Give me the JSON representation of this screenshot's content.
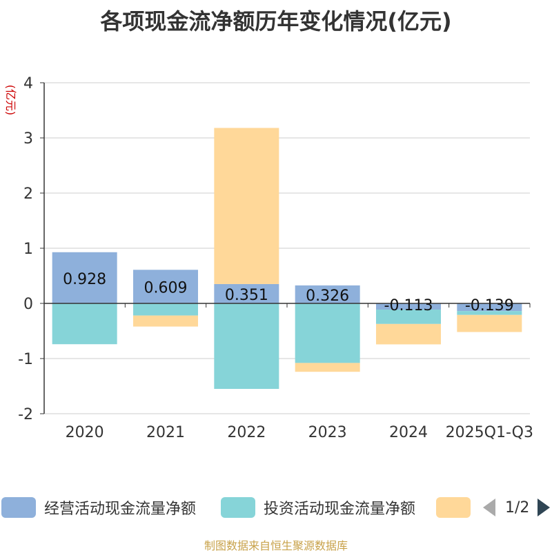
{
  "chart_data": {
    "type": "bar",
    "stacked": true,
    "title": "各项现金流净额历年变化情况(亿元)",
    "ylabel": "(亿元)",
    "xlabel": "",
    "ylim": [
      -2,
      4
    ],
    "yticks": [
      -2,
      -1,
      0,
      1,
      2,
      3,
      4
    ],
    "categories": [
      "2020",
      "2021",
      "2022",
      "2023",
      "2024",
      "2025Q1-Q3"
    ],
    "series": [
      {
        "name": "经营活动现金流量净额",
        "color": "#8eb0db",
        "values": [
          0.928,
          0.609,
          0.351,
          0.326,
          -0.113,
          -0.139
        ],
        "labels": [
          "0.928",
          "0.609",
          "0.351",
          "0.326",
          "-0.113",
          "-0.139"
        ]
      },
      {
        "name": "投资活动现金流量净额",
        "color": "#86d4d8",
        "values": [
          -0.74,
          -0.22,
          -1.55,
          -1.08,
          -0.26,
          -0.07
        ]
      },
      {
        "name": "",
        "color": "#ffd899",
        "values": [
          0.0,
          -0.2,
          2.83,
          -0.16,
          -0.37,
          -0.31
        ]
      }
    ],
    "grid": true,
    "legend_position": "bottom"
  },
  "legend": {
    "page": "1/2"
  },
  "source": "制图数据来自恒生聚源数据库"
}
